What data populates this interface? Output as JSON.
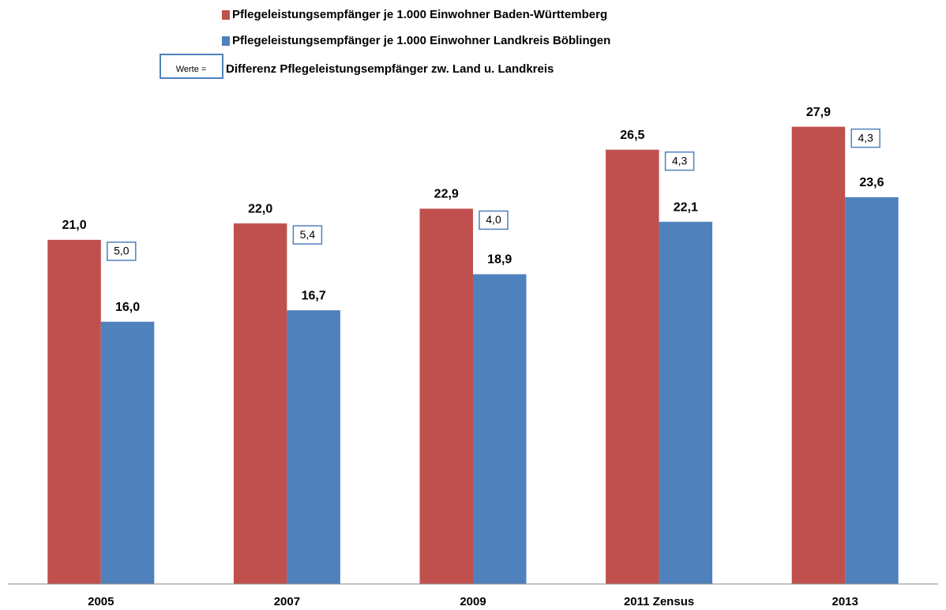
{
  "chart_data": {
    "type": "bar",
    "categories": [
      "2005",
      "2007",
      "2009",
      "2011 Zensus",
      "2013"
    ],
    "series": [
      {
        "name": "Pflegeleistungsempfänger je 1.000 Einwohner Baden-Württemberg",
        "color": "#c0504d",
        "values": [
          21.0,
          22.0,
          22.9,
          26.5,
          27.9
        ],
        "value_labels": [
          "21,0",
          "22,0",
          "22,9",
          "26,5",
          "27,9"
        ]
      },
      {
        "name": "Pflegeleistungsempfänger je 1.000 Einwohner Landkreis Böblingen",
        "color": "#4f81bd",
        "values": [
          16.0,
          16.7,
          18.9,
          22.1,
          23.6
        ],
        "value_labels": [
          "16,0",
          "16,7",
          "18,9",
          "22,1",
          "23,6"
        ]
      }
    ],
    "differences": {
      "legend_prefix": "Werte =",
      "name": "Differenz Pflegeleistungsempfänger zw. Land u. Landkreis",
      "color": "#4f81bd",
      "values": [
        5.0,
        5.4,
        4.0,
        4.3,
        4.3
      ],
      "value_labels": [
        "5,0",
        "5,4",
        "4,0",
        "4,3",
        "4,3"
      ]
    },
    "ylim": [
      0,
      30
    ]
  }
}
